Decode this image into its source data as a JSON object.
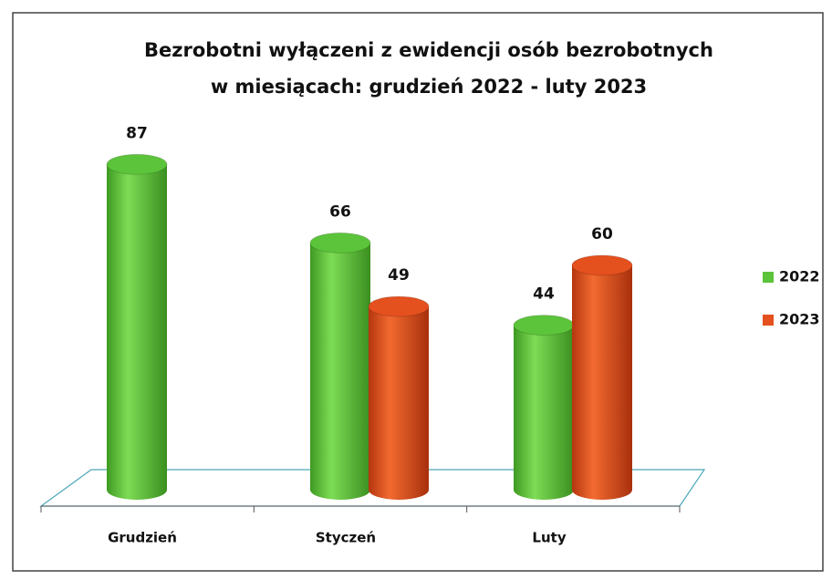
{
  "chart_data": {
    "type": "bar3d",
    "title": [
      "Bezrobotni wyłączeni z ewidencji osób bezrobotnych",
      "w miesiącach: grudzień 2022 - luty 2023"
    ],
    "categories": [
      "Grudzień",
      "Styczeń",
      "Luty"
    ],
    "series": [
      {
        "name": "2022",
        "color": "#5cc43a",
        "values": [
          87,
          66,
          44
        ]
      },
      {
        "name": "2023",
        "color": "#e4501e",
        "values": [
          null,
          49,
          60
        ]
      }
    ],
    "legend": "right"
  }
}
